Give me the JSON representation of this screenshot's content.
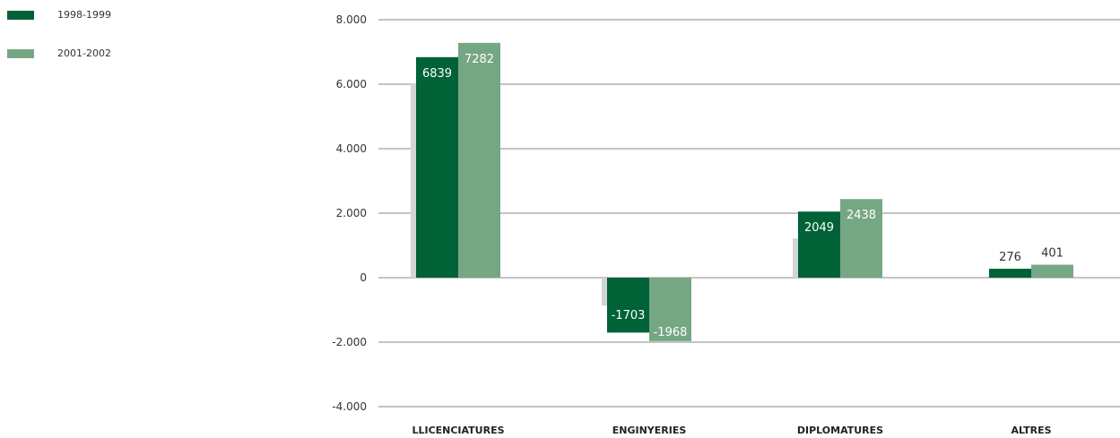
{
  "legend": [
    {
      "label": "1998-1999",
      "color": "#006236"
    },
    {
      "label": "2001-2002",
      "color": "#76a784"
    }
  ],
  "chart_data": {
    "type": "bar",
    "categories": [
      "LLICENCIATURES",
      "ENGINYERIES",
      "DIPLOMATURES",
      "ALTRES"
    ],
    "series": [
      {
        "name": "1998-1999",
        "values": [
          6839,
          -1703,
          2049,
          276
        ],
        "labels": [
          "6839",
          "-1703",
          "2049",
          "276"
        ],
        "color": "#006236"
      },
      {
        "name": "2001-2002",
        "values": [
          7282,
          -1968,
          2438,
          401
        ],
        "labels": [
          "7282",
          "-1968",
          "2438",
          "401"
        ],
        "color": "#76a784"
      }
    ],
    "ylim": [
      -4000,
      8000
    ],
    "yticks": [
      8000,
      6000,
      4000,
      2000,
      0,
      -2000,
      -4000
    ],
    "ytick_labels": [
      "8.000",
      "6.000",
      "4.000",
      "2.000",
      "0",
      "-2.000",
      "-4.000"
    ],
    "grid": true,
    "legend_position": "top-left",
    "shadow_color": "#d4d4d4",
    "grid_color": "#8a8a8a",
    "label_color_inside": "#ffffff",
    "label_color_outside": "#333333"
  }
}
